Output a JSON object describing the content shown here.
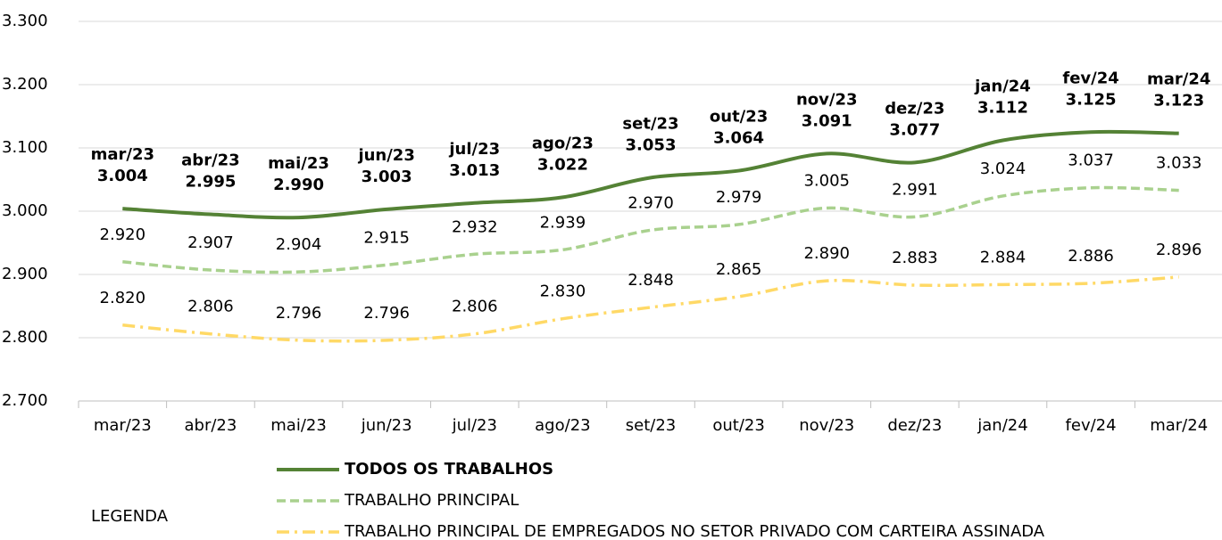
{
  "chart_data": {
    "type": "line",
    "categories": [
      "mar/23",
      "abr/23",
      "mai/23",
      "jun/23",
      "jul/23",
      "ago/23",
      "set/23",
      "out/23",
      "nov/23",
      "dez/23",
      "jan/24",
      "fev/24",
      "mar/24"
    ],
    "ylim": [
      2700,
      3300
    ],
    "yticks": [
      {
        "value": 2700,
        "label": "2.700"
      },
      {
        "value": 2800,
        "label": "2.800"
      },
      {
        "value": 2900,
        "label": "2.900"
      },
      {
        "value": 3000,
        "label": "3.000"
      },
      {
        "value": 3100,
        "label": "3.100"
      },
      {
        "value": 3200,
        "label": "3.200"
      },
      {
        "value": 3300,
        "label": "3.300"
      }
    ],
    "grid": true,
    "legend_title": "LEGENDA",
    "series": [
      {
        "name": "TODOS OS TRABALHOS",
        "color": "#548235",
        "style": "solid",
        "values": [
          3004,
          2995,
          2990,
          3003,
          3013,
          3022,
          3053,
          3064,
          3091,
          3077,
          3112,
          3125,
          3123
        ],
        "value_labels": [
          "3.004",
          "2.995",
          "2.990",
          "3.003",
          "3.013",
          "3.022",
          "3.053",
          "3.064",
          "3.091",
          "3.077",
          "3.112",
          "3.125",
          "3.123"
        ]
      },
      {
        "name": "TRABALHO PRINCIPAL",
        "color": "#a9d18e",
        "style": "dashed",
        "values": [
          2920,
          2907,
          2904,
          2915,
          2932,
          2939,
          2970,
          2979,
          3005,
          2991,
          3024,
          3037,
          3033
        ],
        "value_labels": [
          "2.920",
          "2.907",
          "2.904",
          "2.915",
          "2.932",
          "2.939",
          "2.970",
          "2.979",
          "3.005",
          "2.991",
          "3.024",
          "3.037",
          "3.033"
        ]
      },
      {
        "name": "TRABALHO PRINCIPAL DE EMPREGADOS NO SETOR PRIVADO COM CARTEIRA ASSINADA",
        "color": "#ffd966",
        "style": "dashdot",
        "values": [
          2820,
          2806,
          2796,
          2796,
          2806,
          2830,
          2848,
          2865,
          2890,
          2883,
          2884,
          2886,
          2896
        ],
        "value_labels": [
          "2.820",
          "2.806",
          "2.796",
          "2.796",
          "2.806",
          "2.830",
          "2.848",
          "2.865",
          "2.890",
          "2.883",
          "2.884",
          "2.886",
          "2.896"
        ]
      }
    ]
  }
}
